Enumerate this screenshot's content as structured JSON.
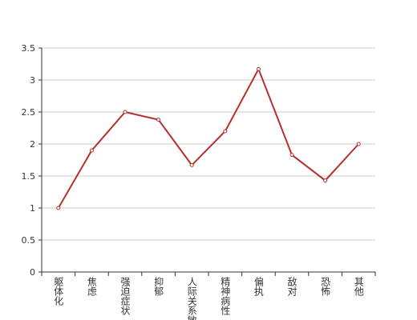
{
  "chart_data": {
    "type": "line",
    "categories": [
      "躯体化",
      "焦虑",
      "强迫症状",
      "抑郁",
      "人际关系敏感",
      "精神病性",
      "偏执",
      "敌对",
      "恐怖",
      "其他"
    ],
    "series": [
      {
        "color": "#b5312f",
        "values": [
          1.0,
          1.9,
          2.5,
          2.38,
          1.67,
          2.2,
          3.17,
          1.83,
          1.43,
          2.0
        ]
      }
    ],
    "ylim": [
      0,
      3.5
    ],
    "yticks": [
      0,
      0.5,
      1,
      1.5,
      2,
      2.5,
      3,
      3.5
    ],
    "grid": true
  }
}
